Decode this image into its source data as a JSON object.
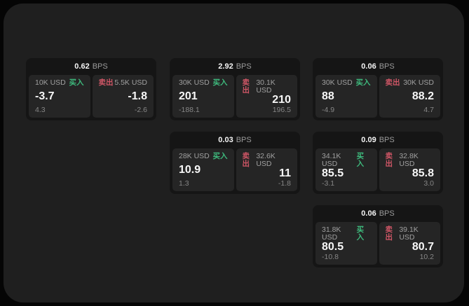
{
  "labels": {
    "bps": "BPS",
    "buy": "买入",
    "sell": "卖出"
  },
  "colors": {
    "page_background": "#050505",
    "panel_background": "#1f1f1f",
    "card_background": "#151515",
    "quote_background": "#252525",
    "buy_green": "#3eba7d",
    "sell_red": "#cf5666",
    "value_white": "#f7f7f7",
    "muted_gray": "#a0a0a0"
  },
  "cards": [
    {
      "bps": "0.62",
      "buy": {
        "amount": "10K USD",
        "value": "-3.7",
        "delta": "4.3"
      },
      "sell": {
        "amount": "5.5K USD",
        "value": "-1.8",
        "delta": "-2.6"
      }
    },
    {
      "bps": "2.92",
      "buy": {
        "amount": "30K USD",
        "value": "201",
        "delta": "-188.1"
      },
      "sell": {
        "amount": "30.1K USD",
        "value": "210",
        "delta": "196.5"
      }
    },
    {
      "bps": "0.06",
      "buy": {
        "amount": "30K USD",
        "value": "88",
        "delta": "-4.9"
      },
      "sell": {
        "amount": "30K USD",
        "value": "88.2",
        "delta": "4.7"
      }
    },
    {
      "bps": "0.03",
      "buy": {
        "amount": "28K USD",
        "value": "10.9",
        "delta": "1.3"
      },
      "sell": {
        "amount": "32.6K USD",
        "value": "11",
        "delta": "-1.8"
      }
    },
    {
      "bps": "0.09",
      "buy": {
        "amount": "34.1K USD",
        "value": "85.5",
        "delta": "-3.1"
      },
      "sell": {
        "amount": "32.8K USD",
        "value": "85.8",
        "delta": "3.0"
      }
    },
    {
      "bps": "0.06",
      "buy": {
        "amount": "31.8K USD",
        "value": "80.5",
        "delta": "-10.8"
      },
      "sell": {
        "amount": "39.1K USD",
        "value": "80.7",
        "delta": "10.2"
      }
    }
  ]
}
